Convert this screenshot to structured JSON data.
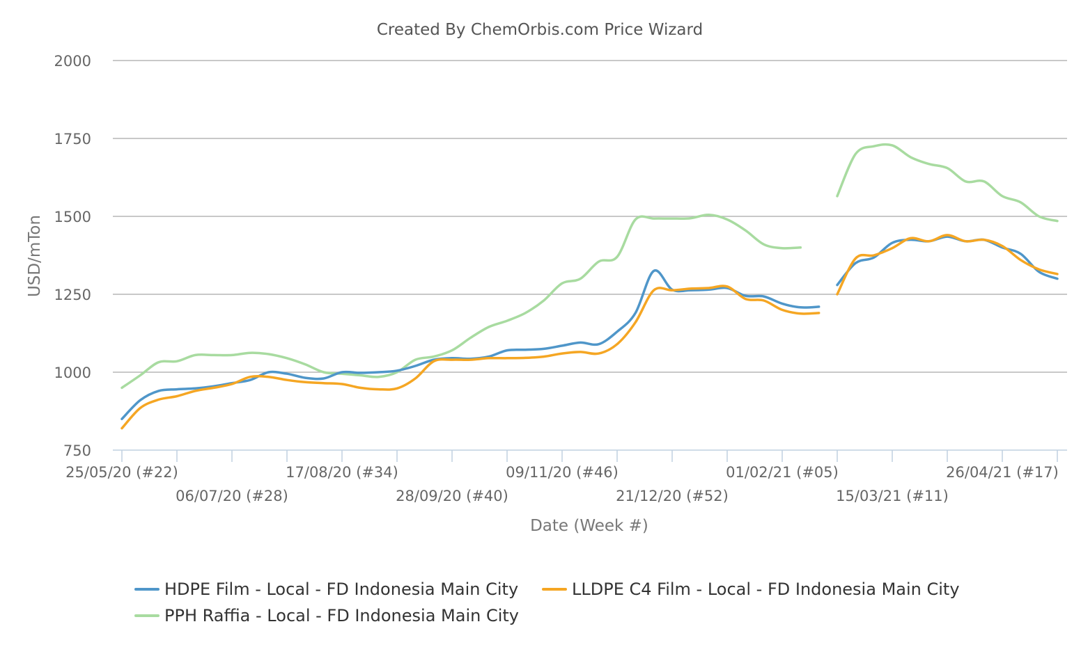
{
  "chart_data": {
    "type": "line",
    "title": "Created By ChemOrbis.com Price Wizard",
    "xlabel": "Date (Week #)",
    "ylabel": "USD/mTon",
    "ylim": [
      750,
      2000
    ],
    "yticks": [
      750,
      1000,
      1250,
      1500,
      1750,
      2000
    ],
    "grid": true,
    "legend_position": "bottom",
    "x_week_start": 22,
    "x_week_end": 73,
    "x_tick_labels": [
      {
        "week": 22,
        "label": "25/05/20 (#22)",
        "row": 0
      },
      {
        "week": 28,
        "label": "06/07/20 (#28)",
        "row": 1
      },
      {
        "week": 34,
        "label": "17/08/20 (#34)",
        "row": 0
      },
      {
        "week": 40,
        "label": "28/09/20 (#40)",
        "row": 1
      },
      {
        "week": 46,
        "label": "09/11/20 (#46)",
        "row": 0
      },
      {
        "week": 52,
        "label": "21/12/20 (#52)",
        "row": 1
      },
      {
        "week": 58,
        "label": "01/02/21 (#05)",
        "row": 0
      },
      {
        "week": 64,
        "label": "15/03/21 (#11)",
        "row": 1
      },
      {
        "week": 70,
        "label": "26/04/21 (#17)",
        "row": 0
      }
    ],
    "series": [
      {
        "name": "HDPE Film - Local - FD Indonesia Main City",
        "color": "#4f96c9",
        "segments": [
          [
            [
              22,
              850
            ],
            [
              23,
              910
            ],
            [
              24,
              940
            ],
            [
              25,
              945
            ],
            [
              26,
              948
            ],
            [
              27,
              955
            ],
            [
              28,
              965
            ],
            [
              29,
              975
            ],
            [
              30,
              1000
            ],
            [
              31,
              995
            ],
            [
              32,
              982
            ],
            [
              33,
              980
            ],
            [
              34,
              1000
            ],
            [
              35,
              998
            ],
            [
              36,
              1000
            ],
            [
              37,
              1005
            ],
            [
              38,
              1020
            ],
            [
              39,
              1040
            ],
            [
              40,
              1045
            ],
            [
              41,
              1043
            ],
            [
              42,
              1050
            ],
            [
              43,
              1070
            ],
            [
              44,
              1072
            ],
            [
              45,
              1075
            ],
            [
              46,
              1085
            ],
            [
              47,
              1095
            ],
            [
              48,
              1090
            ],
            [
              49,
              1130
            ],
            [
              50,
              1190
            ],
            [
              51,
              1325
            ],
            [
              52,
              1265
            ],
            [
              53,
              1263
            ],
            [
              54,
              1265
            ],
            [
              55,
              1270
            ],
            [
              56,
              1245
            ],
            [
              57,
              1243
            ],
            [
              58,
              1220
            ],
            [
              59,
              1208
            ],
            [
              60,
              1210
            ]
          ],
          [
            [
              61,
              1280
            ],
            [
              62,
              1350
            ],
            [
              63,
              1368
            ],
            [
              64,
              1415
            ],
            [
              65,
              1425
            ],
            [
              66,
              1420
            ],
            [
              67,
              1435
            ],
            [
              68,
              1420
            ],
            [
              69,
              1425
            ],
            [
              70,
              1400
            ],
            [
              71,
              1380
            ],
            [
              72,
              1322
            ],
            [
              73,
              1300
            ]
          ]
        ]
      },
      {
        "name": "LLDPE C4 Film - Local - FD Indonesia Main City",
        "color": "#f5a623",
        "segments": [
          [
            [
              22,
              820
            ],
            [
              23,
              885
            ],
            [
              24,
              912
            ],
            [
              25,
              923
            ],
            [
              26,
              940
            ],
            [
              27,
              950
            ],
            [
              28,
              962
            ],
            [
              29,
              985
            ],
            [
              30,
              985
            ],
            [
              31,
              975
            ],
            [
              32,
              968
            ],
            [
              33,
              965
            ],
            [
              34,
              962
            ],
            [
              35,
              950
            ],
            [
              36,
              945
            ],
            [
              37,
              948
            ],
            [
              38,
              980
            ],
            [
              39,
              1035
            ],
            [
              40,
              1040
            ],
            [
              41,
              1040
            ],
            [
              42,
              1045
            ],
            [
              43,
              1045
            ],
            [
              44,
              1046
            ],
            [
              45,
              1050
            ],
            [
              46,
              1060
            ],
            [
              47,
              1065
            ],
            [
              48,
              1060
            ],
            [
              49,
              1090
            ],
            [
              50,
              1160
            ],
            [
              51,
              1263
            ],
            [
              52,
              1263
            ],
            [
              53,
              1268
            ],
            [
              54,
              1270
            ],
            [
              55,
              1275
            ],
            [
              56,
              1235
            ],
            [
              57,
              1230
            ],
            [
              58,
              1200
            ],
            [
              59,
              1188
            ],
            [
              60,
              1190
            ]
          ],
          [
            [
              61,
              1250
            ],
            [
              62,
              1365
            ],
            [
              63,
              1375
            ],
            [
              64,
              1398
            ],
            [
              65,
              1430
            ],
            [
              66,
              1420
            ],
            [
              67,
              1440
            ],
            [
              68,
              1420
            ],
            [
              69,
              1425
            ],
            [
              70,
              1405
            ],
            [
              71,
              1360
            ],
            [
              72,
              1330
            ],
            [
              73,
              1315
            ]
          ]
        ]
      },
      {
        "name": "PPH Raffia - Local - FD Indonesia Main City",
        "color": "#a8dba0",
        "segments": [
          [
            [
              22,
              950
            ],
            [
              23,
              990
            ],
            [
              24,
              1032
            ],
            [
              25,
              1035
            ],
            [
              26,
              1055
            ],
            [
              27,
              1055
            ],
            [
              28,
              1055
            ],
            [
              29,
              1062
            ],
            [
              30,
              1058
            ],
            [
              31,
              1045
            ],
            [
              32,
              1025
            ],
            [
              33,
              1000
            ],
            [
              34,
              995
            ],
            [
              35,
              990
            ],
            [
              36,
              985
            ],
            [
              37,
              1000
            ],
            [
              38,
              1040
            ],
            [
              39,
              1050
            ],
            [
              40,
              1070
            ],
            [
              41,
              1110
            ],
            [
              42,
              1145
            ],
            [
              43,
              1165
            ],
            [
              44,
              1190
            ],
            [
              45,
              1230
            ],
            [
              46,
              1285
            ],
            [
              47,
              1300
            ],
            [
              48,
              1355
            ],
            [
              49,
              1370
            ],
            [
              50,
              1490
            ],
            [
              51,
              1493
            ],
            [
              52,
              1493
            ],
            [
              53,
              1494
            ],
            [
              54,
              1505
            ],
            [
              55,
              1490
            ],
            [
              56,
              1455
            ],
            [
              57,
              1410
            ],
            [
              58,
              1398
            ],
            [
              59,
              1400
            ]
          ],
          [
            [
              61,
              1565
            ],
            [
              62,
              1700
            ],
            [
              63,
              1725
            ],
            [
              64,
              1728
            ],
            [
              65,
              1690
            ],
            [
              66,
              1668
            ],
            [
              67,
              1655
            ],
            [
              68,
              1612
            ],
            [
              69,
              1612
            ],
            [
              70,
              1565
            ],
            [
              71,
              1545
            ],
            [
              72,
              1500
            ],
            [
              73,
              1485
            ]
          ]
        ]
      }
    ]
  }
}
